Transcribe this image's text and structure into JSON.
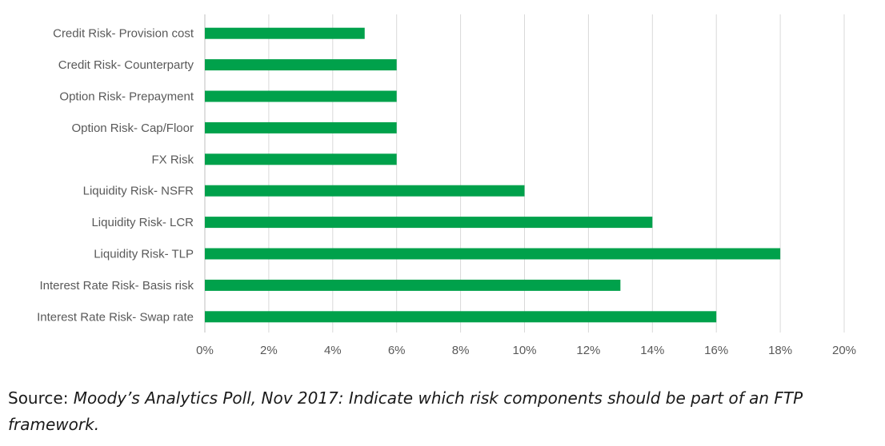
{
  "chart_data": {
    "type": "bar",
    "orientation": "horizontal",
    "categories": [
      "Credit Risk- Provision cost",
      "Credit Risk- Counterparty",
      "Option Risk- Prepayment",
      "Option Risk- Cap/Floor",
      "FX Risk",
      "Liquidity Risk- NSFR",
      "Liquidity Risk- LCR",
      "Liquidity Risk- TLP",
      "Interest Rate Risk- Basis risk",
      "Interest Rate Risk- Swap rate"
    ],
    "values": [
      5,
      6,
      6,
      6,
      6,
      10,
      14,
      18,
      13,
      16
    ],
    "xlim": [
      0,
      20
    ],
    "x_ticks": [
      "0%",
      "2%",
      "4%",
      "6%",
      "8%",
      "10%",
      "12%",
      "14%",
      "16%",
      "18%",
      "20%"
    ],
    "grid": "vertical",
    "bar_color": "#00A14B",
    "grid_color": "#D9D9D9"
  },
  "caption": {
    "prefix": "Source: ",
    "text": "Moody’s Analytics Poll, Nov 2017: Indicate which risk components should be part of an FTP framework."
  }
}
